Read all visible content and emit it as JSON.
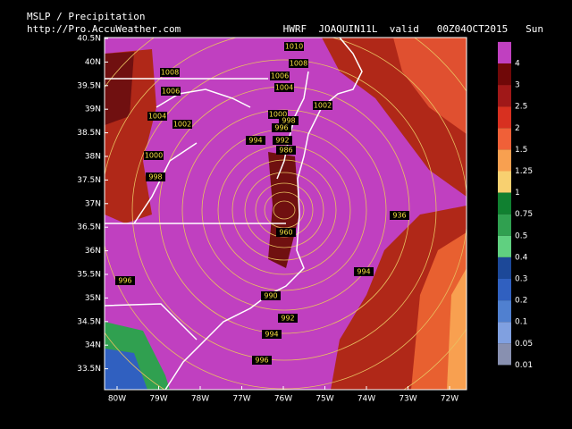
{
  "header": {
    "left_line1": "MSLP / Precipitation",
    "left_line2": "http://Pro.AccuWeather.com",
    "right": "HWRF  JOAQUIN11L  valid   00Z04OCT2015   Sun"
  },
  "map": {
    "lat_labels": [
      "40.5N",
      "40N",
      "39.5N",
      "39N",
      "38.5N",
      "38N",
      "37.5N",
      "37N",
      "36.5N",
      "36N",
      "35.5N",
      "35N",
      "34.5N",
      "34N",
      "33.5N"
    ],
    "lon_labels": [
      "80W",
      "79W",
      "78W",
      "77W",
      "76W",
      "75W",
      "74W",
      "73W",
      "72W"
    ],
    "isobar_labels": [
      "1010",
      "1008",
      "1008",
      "1006",
      "1004",
      "1006",
      "1002",
      "1004",
      "1000",
      "998",
      "1002",
      "996",
      "994",
      "992",
      "1000",
      "998",
      "986",
      "936",
      "960",
      "994",
      "996",
      "990",
      "992",
      "994",
      "996"
    ]
  },
  "legend": {
    "levels": [
      {
        "label": "4",
        "color": "#c040c0"
      },
      {
        "label": "3",
        "color": "#700808"
      },
      {
        "label": "2.5",
        "color": "#a01818"
      },
      {
        "label": "2",
        "color": "#d83020"
      },
      {
        "label": "1.5",
        "color": "#f06038"
      },
      {
        "label": "1.25",
        "color": "#f8a050"
      },
      {
        "label": "1",
        "color": "#f8d070"
      },
      {
        "label": "0.75",
        "color": "#108030"
      },
      {
        "label": "0.5",
        "color": "#30a050"
      },
      {
        "label": "0.4",
        "color": "#60d080"
      },
      {
        "label": "0.3",
        "color": "#1c4898"
      },
      {
        "label": "0.2",
        "color": "#3060c0"
      },
      {
        "label": "0.1",
        "color": "#5080d0"
      },
      {
        "label": "0.05",
        "color": "#80a0e0"
      },
      {
        "label": "0.01",
        "color": "#8890b0"
      }
    ]
  }
}
